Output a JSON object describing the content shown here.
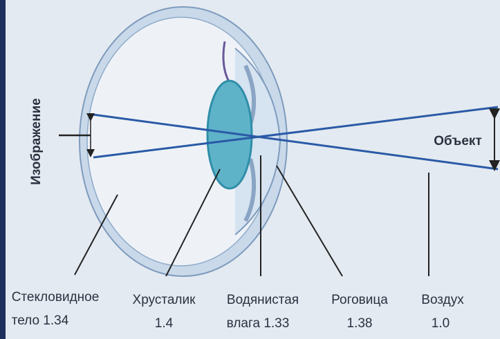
{
  "image_label": "Изображение",
  "object_label": "Объект",
  "labels": [
    {
      "name": "Стекловидное",
      "detail": "тело 1.34"
    },
    {
      "name": "Хрусталик",
      "detail": "1.4"
    },
    {
      "name": "Водянистая",
      "detail": "влага 1.33"
    },
    {
      "name": "Роговица",
      "detail": "1.38"
    },
    {
      "name": "Воздух",
      "detail": "1.0"
    }
  ]
}
